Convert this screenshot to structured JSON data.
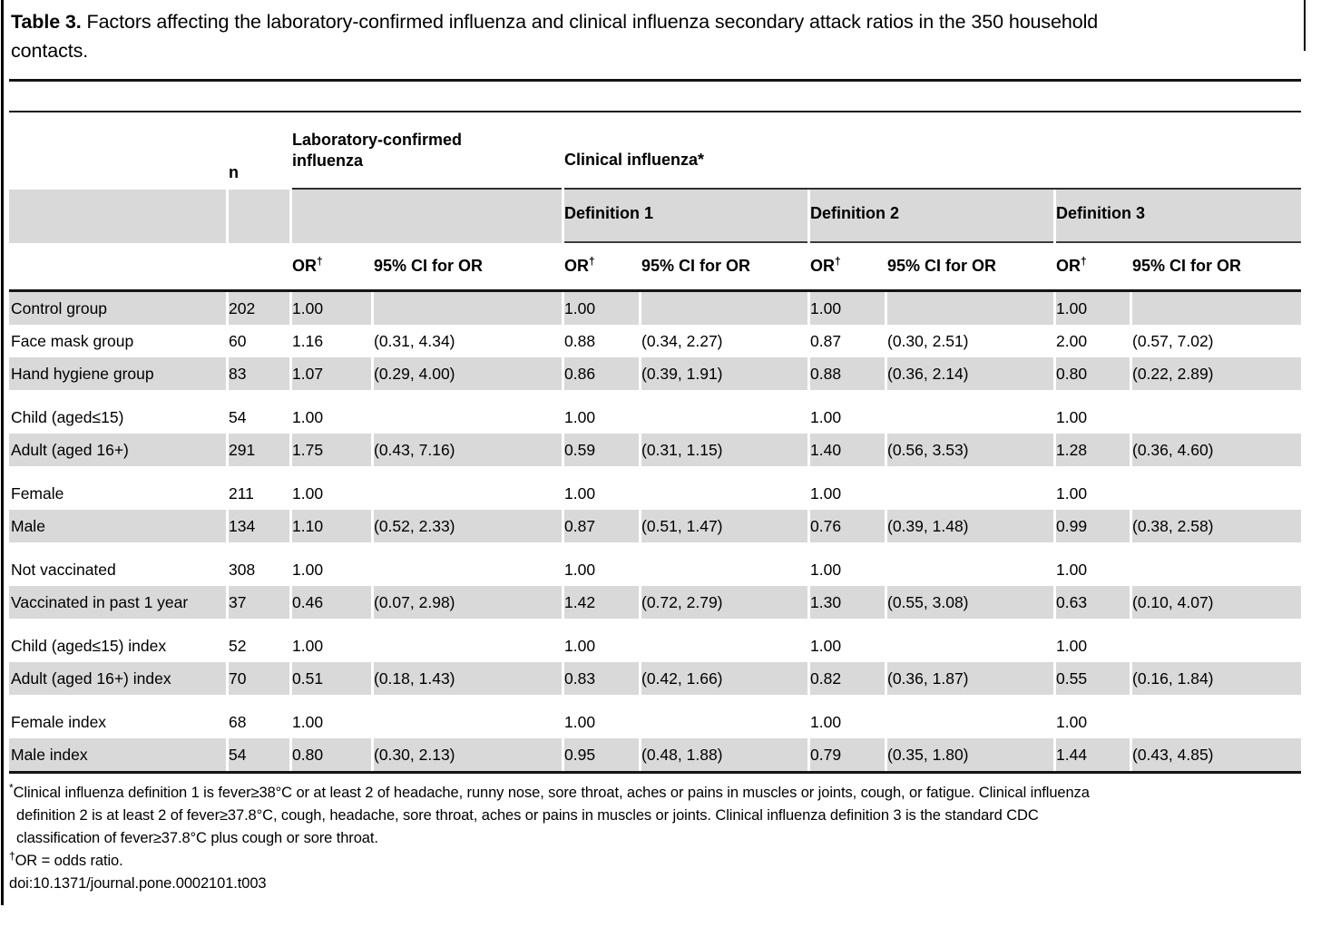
{
  "title": {
    "bold": "Table 3.",
    "line1": "Factors affecting the laboratory-confirmed influenza and clinical influenza secondary attack ratios in the 350 household",
    "line2": "contacts."
  },
  "header": {
    "n_label": "n",
    "lab_group_line1": "Laboratory-confirmed",
    "lab_group_line2": "influenza",
    "clinical_group": "Clinical influenza*",
    "definitions": [
      "Definition 1",
      "Definition 2",
      "Definition 3"
    ],
    "or_label": "OR",
    "or_sup": "†",
    "ci_label": "95% CI for OR"
  },
  "rows": [
    {
      "label": "Control group",
      "n": "202",
      "values": [
        "1.00",
        "",
        "1.00",
        "",
        "1.00",
        "",
        "1.00",
        ""
      ],
      "shaded": true,
      "spacer_before": false
    },
    {
      "label": "Face mask group",
      "n": "60",
      "values": [
        "1.16",
        "(0.31, 4.34)",
        "0.88",
        "(0.34, 2.27)",
        "0.87",
        "(0.30, 2.51)",
        "2.00",
        "(0.57, 7.02)"
      ],
      "shaded": false,
      "spacer_before": false
    },
    {
      "label": "Hand hygiene group",
      "n": "83",
      "values": [
        "1.07",
        "(0.29, 4.00)",
        "0.86",
        "(0.39, 1.91)",
        "0.88",
        "(0.36, 2.14)",
        "0.80",
        "(0.22, 2.89)"
      ],
      "shaded": true,
      "spacer_before": false
    },
    {
      "label": "Child (aged≤15)",
      "n": "54",
      "values": [
        "1.00",
        "",
        "1.00",
        "",
        "1.00",
        "",
        "1.00",
        ""
      ],
      "shaded": false,
      "spacer_before": true
    },
    {
      "label": "Adult (aged 16+)",
      "n": "291",
      "values": [
        "1.75",
        "(0.43, 7.16)",
        "0.59",
        "(0.31, 1.15)",
        "1.40",
        "(0.56, 3.53)",
        "1.28",
        "(0.36, 4.60)"
      ],
      "shaded": true,
      "spacer_before": false
    },
    {
      "label": "Female",
      "n": "211",
      "values": [
        "1.00",
        "",
        "1.00",
        "",
        "1.00",
        "",
        "1.00",
        ""
      ],
      "shaded": false,
      "spacer_before": true
    },
    {
      "label": "Male",
      "n": "134",
      "values": [
        "1.10",
        "(0.52, 2.33)",
        "0.87",
        "(0.51, 1.47)",
        "0.76",
        "(0.39, 1.48)",
        "0.99",
        "(0.38, 2.58)"
      ],
      "shaded": true,
      "spacer_before": false
    },
    {
      "label": "Not vaccinated",
      "n": "308",
      "values": [
        "1.00",
        "",
        "1.00",
        "",
        "1.00",
        "",
        "1.00",
        ""
      ],
      "shaded": false,
      "spacer_before": true
    },
    {
      "label": "Vaccinated in past 1 year",
      "n": "37",
      "values": [
        "0.46",
        "(0.07, 2.98)",
        "1.42",
        "(0.72, 2.79)",
        "1.30",
        "(0.55, 3.08)",
        "0.63",
        "(0.10, 4.07)"
      ],
      "shaded": true,
      "spacer_before": false
    },
    {
      "label": "Child (aged≤15) index",
      "n": "52",
      "values": [
        "1.00",
        "",
        "1.00",
        "",
        "1.00",
        "",
        "1.00",
        ""
      ],
      "shaded": false,
      "spacer_before": true
    },
    {
      "label": "Adult (aged 16+) index",
      "n": "70",
      "values": [
        "0.51",
        "(0.18, 1.43)",
        "0.83",
        "(0.42, 1.66)",
        "0.82",
        "(0.36, 1.87)",
        "0.55",
        "(0.16, 1.84)"
      ],
      "shaded": true,
      "spacer_before": false
    },
    {
      "label": "Female index",
      "n": "68",
      "values": [
        "1.00",
        "",
        "1.00",
        "",
        "1.00",
        "",
        "1.00",
        ""
      ],
      "shaded": false,
      "spacer_before": true
    },
    {
      "label": "Male index",
      "n": "54",
      "values": [
        "0.80",
        "(0.30, 2.13)",
        "0.95",
        "(0.48, 1.88)",
        "0.79",
        "(0.35, 1.80)",
        "1.44",
        "(0.43, 4.85)"
      ],
      "shaded": true,
      "spacer_before": false
    }
  ],
  "footnotes": {
    "asterisk": "*",
    "line1": "Clinical influenza definition 1 is fever≥38°C or at least 2 of headache, runny nose, sore throat, aches or pains in muscles or joints, cough, or fatigue. Clinical influenza",
    "line2": "definition 2 is at least 2 of fever≥37.8°C, cough, headache, sore throat, aches or pains in muscles or joints. Clinical influenza definition 3 is the standard CDC",
    "line3": "classification of fever≥37.8°C plus cough or sore throat.",
    "dagger": "†",
    "dagger_text": "OR = odds ratio.",
    "doi": "doi:10.1371/journal.pone.0002101.t003"
  },
  "colors": {
    "row_shade": "#d9d9d9",
    "rule": "#141414",
    "underline": "#3c3c3c"
  }
}
